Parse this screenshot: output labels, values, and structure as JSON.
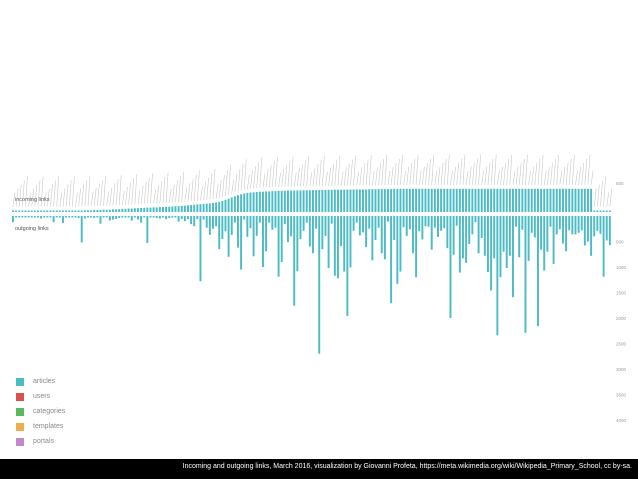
{
  "caption": "Incoming and outgoing links, March 2016, visualization by Giovanni Profeta, https://meta.wikimedia.org/wiki/Wikipedia_Primary_School, cc by-sa.",
  "chart_data": {
    "type": "bar",
    "incoming_label": "incoming links",
    "outgoing_label": "outgoing links",
    "incoming_axis_ticks": [
      "500"
    ],
    "outgoing_axis_ticks": [
      "500",
      "1000",
      "1500",
      "2000",
      "2500",
      "3000",
      "3500",
      "4000"
    ],
    "incoming_max": 500,
    "outgoing_max": 4000,
    "legend": [
      {
        "name": "articles",
        "color": "#4bbcc4"
      },
      {
        "name": "users",
        "color": "#d9534f"
      },
      {
        "name": "categories",
        "color": "#5cb85c"
      },
      {
        "name": "templates",
        "color": "#f0ad4e"
      },
      {
        "name": "portals",
        "color": "#c389c6"
      }
    ],
    "incoming": [
      0,
      0,
      0,
      0,
      0,
      0,
      0,
      0,
      0,
      0,
      0,
      0,
      0,
      10,
      10,
      15,
      15,
      15,
      15,
      20,
      20,
      25,
      25,
      30,
      30,
      30,
      35,
      35,
      35,
      40,
      40,
      40,
      45,
      45,
      50,
      55,
      55,
      60,
      60,
      65,
      65,
      70,
      70,
      75,
      75,
      80,
      80,
      85,
      85,
      90,
      90,
      95,
      100,
      100,
      105,
      110,
      115,
      120,
      125,
      130,
      135,
      140,
      145,
      150,
      155,
      165,
      175,
      190,
      210,
      230,
      250,
      270,
      290,
      305,
      320,
      330,
      335,
      340,
      345,
      350,
      350,
      355,
      355,
      360,
      360,
      365,
      365,
      365,
      370,
      370,
      370,
      372,
      372,
      375,
      375,
      375,
      378,
      378,
      380,
      380,
      380,
      382,
      382,
      385,
      385,
      385,
      385,
      388,
      388,
      388,
      390,
      390,
      390,
      390,
      392,
      392,
      392,
      395,
      395,
      395,
      395,
      395,
      398,
      398,
      398,
      398,
      400,
      400,
      400,
      400,
      400,
      400,
      400,
      400,
      400,
      400,
      400,
      400,
      400,
      400,
      400,
      400,
      400,
      400,
      400,
      400,
      400,
      400,
      400,
      400,
      400,
      400,
      400,
      400,
      400,
      400,
      400,
      400,
      400,
      400,
      400,
      400,
      400,
      400,
      400,
      400,
      400,
      400,
      400,
      400,
      400,
      400,
      400,
      400,
      400,
      400,
      400,
      400,
      400,
      400,
      400,
      400,
      400,
      400,
      400,
      400
    ],
    "outgoing": [
      120,
      0,
      0,
      20,
      20,
      20,
      30,
      30,
      10,
      50,
      20,
      10,
      20,
      120,
      20,
      10,
      140,
      20,
      10,
      30,
      20,
      40,
      520,
      50,
      30,
      20,
      40,
      20,
      150,
      30,
      20,
      90,
      70,
      60,
      40,
      20,
      30,
      20,
      90,
      20,
      70,
      130,
      30,
      530,
      20,
      20,
      40,
      50,
      20,
      60,
      40,
      30,
      20,
      110,
      60,
      100,
      60,
      160,
      200,
      60,
      1280,
      70,
      230,
      370,
      250,
      200,
      650,
      450,
      300,
      800,
      370,
      130,
      620,
      1050,
      70,
      410,
      240,
      790,
      390,
      130,
      1000,
      690,
      130,
      270,
      230,
      1190,
      900,
      160,
      510,
      400,
      1760,
      1080,
      450,
      290,
      130,
      600,
      730,
      250,
      2700,
      650,
      390,
      1020,
      150,
      1170,
      1220,
      590,
      1090,
      1960,
      1010,
      290,
      130,
      380,
      320,
      610,
      250,
      870,
      470,
      230,
      730,
      850,
      110,
      1710,
      470,
      1330,
      1090,
      220,
      390,
      260,
      730,
      1200,
      300,
      460,
      200,
      210,
      660,
      230,
      410,
      290,
      240,
      630,
      2000,
      760,
      190,
      1110,
      830,
      920,
      550,
      360,
      120,
      730,
      430,
      780,
      1100,
      1460,
      830,
      2340,
      1200,
      700,
      1020,
      780,
      1590,
      210,
      810,
      270,
      2290,
      880,
      330,
      420,
      2160,
      660,
      1070,
      700,
      210,
      940,
      360,
      260,
      540,
      690,
      280,
      360,
      360,
      330,
      280,
      580,
      500,
      780,
      400,
      290,
      350,
      1190,
      480,
      570
    ]
  }
}
